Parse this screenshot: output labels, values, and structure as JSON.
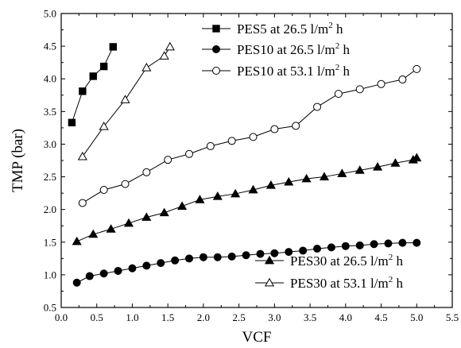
{
  "chart_data": {
    "type": "line",
    "xlabel": "VCF",
    "ylabel": "TMP (bar)",
    "xlim": [
      0.0,
      5.5
    ],
    "ylim": [
      0.5,
      5.0
    ],
    "grid": false,
    "x_ticks": [
      "0.0",
      "0.5",
      "1.0",
      "1.5",
      "2.0",
      "2.5",
      "3.0",
      "3.5",
      "4.0",
      "4.5",
      "5.0",
      "5.5"
    ],
    "y_ticks": [
      "0.5",
      "1.0",
      "1.5",
      "2.0",
      "2.5",
      "3.0",
      "3.5",
      "4.0",
      "4.5",
      "5.0"
    ],
    "legend_top": {
      "placement": "top-center",
      "series": [
        0,
        1,
        2
      ]
    },
    "legend_bottom": {
      "placement": "bottom-right",
      "series": [
        3,
        4
      ]
    },
    "series": [
      {
        "name_main": "PES5 at 26.5 l/m",
        "name_sup": "2",
        "name_end": " h",
        "marker": "filled-square",
        "x": [
          0.15,
          0.3,
          0.45,
          0.6,
          0.73
        ],
        "y": [
          3.33,
          3.81,
          4.04,
          4.19,
          4.49
        ]
      },
      {
        "name_main": "PES10 at 26.5 l/m",
        "name_sup": "2",
        "name_end": " h",
        "marker": "filled-circle",
        "x": [
          0.22,
          0.4,
          0.6,
          0.8,
          1.0,
          1.2,
          1.4,
          1.6,
          1.8,
          2.0,
          2.2,
          2.4,
          2.6,
          2.8,
          3.0,
          3.2,
          3.4,
          3.6,
          3.8,
          4.0,
          4.2,
          4.4,
          4.6,
          4.8,
          5.0
        ],
        "y": [
          0.88,
          0.98,
          1.02,
          1.06,
          1.1,
          1.14,
          1.18,
          1.22,
          1.25,
          1.27,
          1.27,
          1.28,
          1.3,
          1.32,
          1.33,
          1.35,
          1.37,
          1.4,
          1.42,
          1.44,
          1.45,
          1.47,
          1.48,
          1.49,
          1.49
        ]
      },
      {
        "name_main": "PES10 at 53.1 l/m",
        "name_sup": "2",
        "name_end": " h",
        "marker": "open-circle",
        "x": [
          0.3,
          0.6,
          0.9,
          1.2,
          1.5,
          1.8,
          2.1,
          2.4,
          2.7,
          3.0,
          3.3,
          3.6,
          3.9,
          4.2,
          4.5,
          4.8,
          5.0
        ],
        "y": [
          2.1,
          2.3,
          2.39,
          2.57,
          2.76,
          2.85,
          2.97,
          3.05,
          3.11,
          3.23,
          3.28,
          3.57,
          3.77,
          3.84,
          3.92,
          3.99,
          4.15
        ]
      },
      {
        "name_main": "PES30 at 26.5 l/m",
        "name_sup": "2",
        "name_end": " h",
        "marker": "filled-triangle",
        "x": [
          0.22,
          0.45,
          0.7,
          0.95,
          1.2,
          1.45,
          1.7,
          1.95,
          2.2,
          2.45,
          2.7,
          2.95,
          3.2,
          3.45,
          3.7,
          3.95,
          4.2,
          4.45,
          4.7,
          4.95,
          5.0
        ],
        "y": [
          1.51,
          1.62,
          1.7,
          1.79,
          1.88,
          1.95,
          2.05,
          2.15,
          2.2,
          2.24,
          2.3,
          2.37,
          2.42,
          2.47,
          2.5,
          2.55,
          2.6,
          2.65,
          2.71,
          2.76,
          2.79
        ]
      },
      {
        "name_main": "PES30 at 53.1 l/m",
        "name_sup": "2",
        "name_end": " h",
        "marker": "open-triangle",
        "x": [
          0.3,
          0.6,
          0.9,
          1.2,
          1.45,
          1.53
        ],
        "y": [
          2.81,
          3.27,
          3.68,
          4.17,
          4.35,
          4.49
        ]
      }
    ]
  }
}
